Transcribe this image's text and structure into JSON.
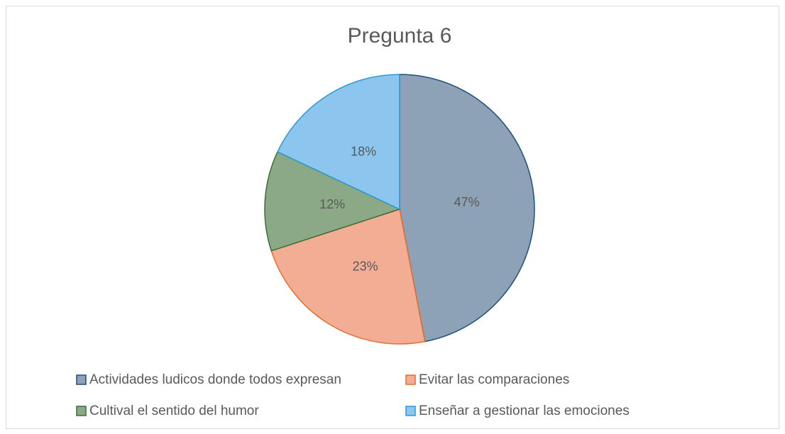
{
  "chart_data": {
    "type": "pie",
    "title": "Pregunta 6",
    "categories": [
      "Actividades ludicos donde todos expresan",
      "Evitar las comparaciones",
      "Cultival el sentido del humor",
      "Enseñar a gestionar las emociones"
    ],
    "values": [
      47,
      23,
      12,
      18
    ],
    "value_labels": [
      "47%",
      "23%",
      "12%",
      "18%"
    ],
    "colors": [
      "#8da2b6",
      "#f4ad95",
      "#8ba987",
      "#8cc6ef"
    ],
    "border_colors": [
      "#1f4e79",
      "#e2702f",
      "#3a6e35",
      "#2b9ad6"
    ],
    "legend": "bottom"
  }
}
